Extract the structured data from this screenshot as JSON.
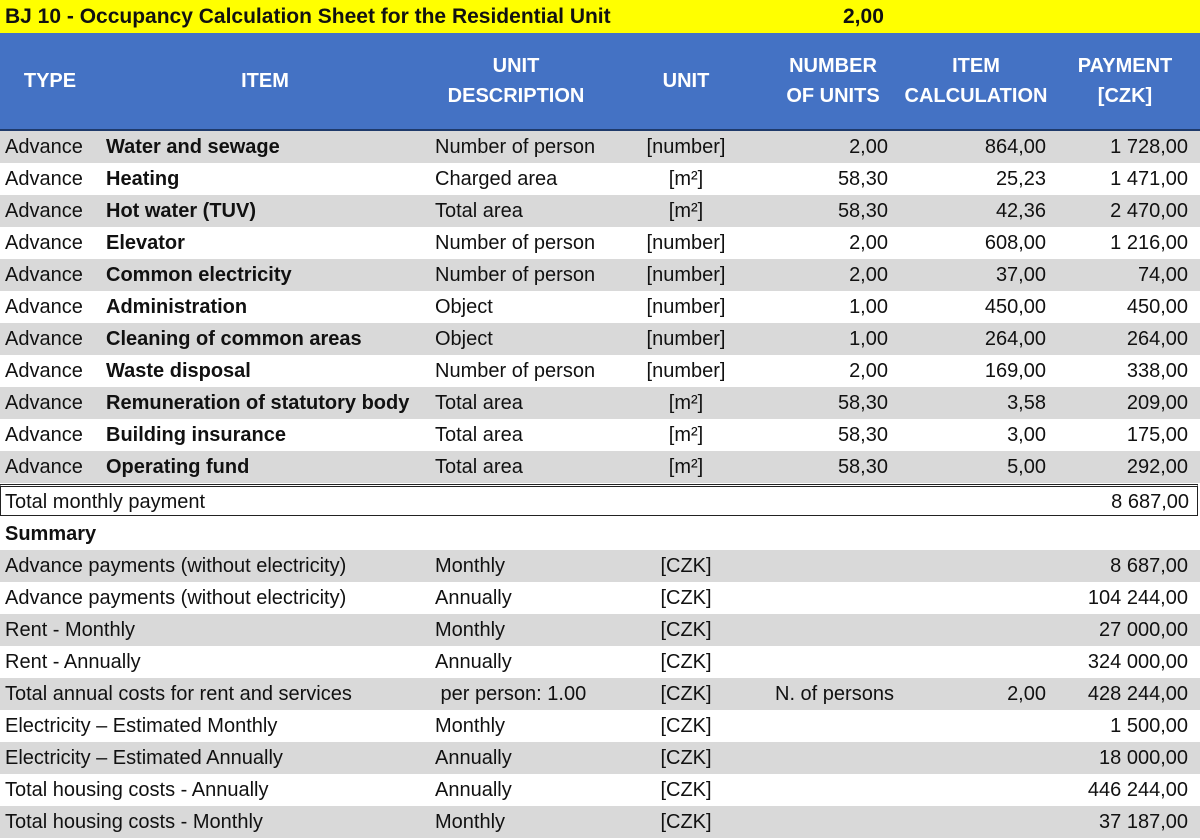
{
  "title": "BJ 10 - Occupancy Calculation Sheet for the Residential Unit",
  "title_value": "2,00",
  "headers": {
    "type": "TYPE",
    "item": "ITEM",
    "unit_description": "UNIT\nDESCRIPTION",
    "unit": "UNIT",
    "number_of_units": "NUMBER\nOF UNITS",
    "item_calculation": "ITEM\nCALCULATION",
    "payment": "PAYMENT\n[CZK]"
  },
  "items": [
    {
      "type": "Advance",
      "item": "Water and sewage",
      "desc": "Number of person",
      "unit": "[number]",
      "units": "2,00",
      "calc": "864,00",
      "payment": "1 728,00"
    },
    {
      "type": "Advance",
      "item": "Heating",
      "desc": "Charged area",
      "unit": "[m²]",
      "units": "58,30",
      "calc": "25,23",
      "payment": "1 471,00"
    },
    {
      "type": "Advance",
      "item": "Hot water (TUV)",
      "desc": "Total area",
      "unit": "[m²]",
      "units": "58,30",
      "calc": "42,36",
      "payment": "2 470,00"
    },
    {
      "type": "Advance",
      "item": "Elevator",
      "desc": "Number of person",
      "unit": "[number]",
      "units": "2,00",
      "calc": "608,00",
      "payment": "1 216,00"
    },
    {
      "type": "Advance",
      "item": "Common electricity",
      "desc": "Number of person",
      "unit": "[number]",
      "units": "2,00",
      "calc": "37,00",
      "payment": "74,00"
    },
    {
      "type": "Advance",
      "item": "Administration",
      "desc": "Object",
      "unit": "[number]",
      "units": "1,00",
      "calc": "450,00",
      "payment": "450,00"
    },
    {
      "type": "Advance",
      "item": "Cleaning of common areas",
      "desc": "Object",
      "unit": "[number]",
      "units": "1,00",
      "calc": "264,00",
      "payment": "264,00"
    },
    {
      "type": "Advance",
      "item": "Waste disposal",
      "desc": "Number of person",
      "unit": "[number]",
      "units": "2,00",
      "calc": "169,00",
      "payment": "338,00"
    },
    {
      "type": "Advance",
      "item": "Remuneration of statutory body",
      "desc": "Total area",
      "unit": "[m²]",
      "units": "58,30",
      "calc": "3,58",
      "payment": "209,00"
    },
    {
      "type": "Advance",
      "item": "Building insurance",
      "desc": "Total area",
      "unit": "[m²]",
      "units": "58,30",
      "calc": "3,00",
      "payment": "175,00"
    },
    {
      "type": "Advance",
      "item": "Operating fund",
      "desc": "Total area",
      "unit": "[m²]",
      "units": "58,30",
      "calc": "5,00",
      "payment": "292,00"
    }
  ],
  "total": {
    "label": "Total monthly payment",
    "value": "8 687,00"
  },
  "summary_title": "Summary",
  "summary": [
    {
      "label": "Advance payments (without electricity)",
      "period": "Monthly",
      "unit": "[CZK]",
      "extra": "",
      "extra_value": "",
      "value": "8 687,00"
    },
    {
      "label": "Advance payments (without electricity)",
      "period": "Annually",
      "unit": "[CZK]",
      "extra": "",
      "extra_value": "",
      "value": "104 244,00"
    },
    {
      "label": "Rent - Monthly",
      "period": "Monthly",
      "unit": "[CZK]",
      "extra": "",
      "extra_value": "",
      "value": "27 000,00"
    },
    {
      "label": "Rent - Annually",
      "period": "Annually",
      "unit": "[CZK]",
      "extra": "",
      "extra_value": "",
      "value": "324 000,00"
    },
    {
      "label": "Total annual costs for rent and services",
      "period": " per person: 1.00",
      "unit": "[CZK]",
      "extra": "N. of persons",
      "extra_value": "2,00",
      "value": "428 244,00"
    },
    {
      "label": "Electricity – Estimated Monthly",
      "period": "Monthly",
      "unit": "[CZK]",
      "extra": "",
      "extra_value": "",
      "value": "1 500,00"
    },
    {
      "label": "Electricity – Estimated Annually",
      "period": "Annually",
      "unit": "[CZK]",
      "extra": "",
      "extra_value": "",
      "value": "18 000,00"
    },
    {
      "label": "Total housing costs - Annually",
      "period": "Annually",
      "unit": "[CZK]",
      "extra": "",
      "extra_value": "",
      "value": "446 244,00"
    },
    {
      "label": "Total housing costs - Monthly",
      "period": "Monthly",
      "unit": "[CZK]",
      "extra": "",
      "extra_value": "",
      "value": "37 187,00"
    }
  ],
  "colors": {
    "title_bg": "#ffff00",
    "header_bg": "#4472c4",
    "row_shaded": "#d9d9d9",
    "row_white": "#ffffff"
  }
}
